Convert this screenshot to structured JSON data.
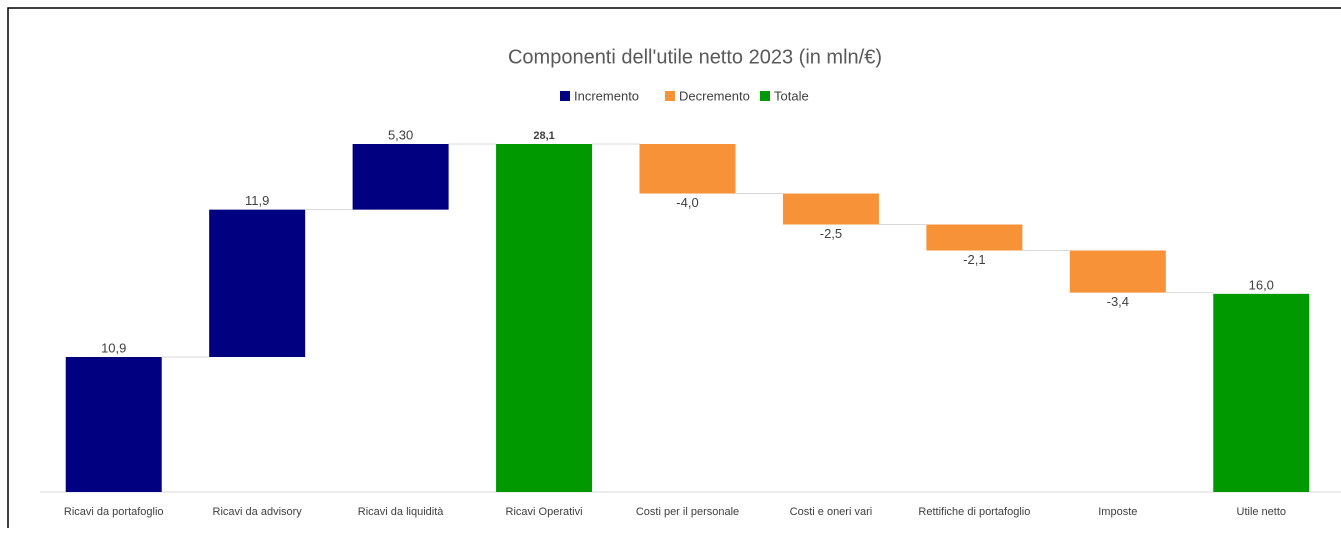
{
  "chart_data": {
    "type": "waterfall",
    "title": "Componenti dell'utile netto 2023 (in mln/€)",
    "categories": [
      "Ricavi da portafoglio",
      "Ricavi da advisory",
      "Ricavi da liquidità",
      "Ricavi Operativi",
      "Costi per il personale",
      "Costi e oneri vari",
      "Rettifiche di portafoglio",
      "Imposte",
      "Utile netto"
    ],
    "values": [
      10.9,
      11.9,
      5.3,
      28.1,
      -4.0,
      -2.5,
      -2.1,
      -3.4,
      16.0
    ],
    "value_labels": [
      "10,9",
      "11,9",
      "5,30",
      "28,1",
      "-4,0",
      "-2,5",
      "-2,1",
      "-3,4",
      "16,0"
    ],
    "totals": [
      false,
      false,
      false,
      true,
      false,
      false,
      false,
      false,
      true
    ],
    "series": [
      {
        "name": "Incremento",
        "color": "#000080"
      },
      {
        "name": "Decremento",
        "color": "#f79239"
      },
      {
        "name": "Totale",
        "color": "#009900"
      }
    ],
    "legend": "top"
  }
}
